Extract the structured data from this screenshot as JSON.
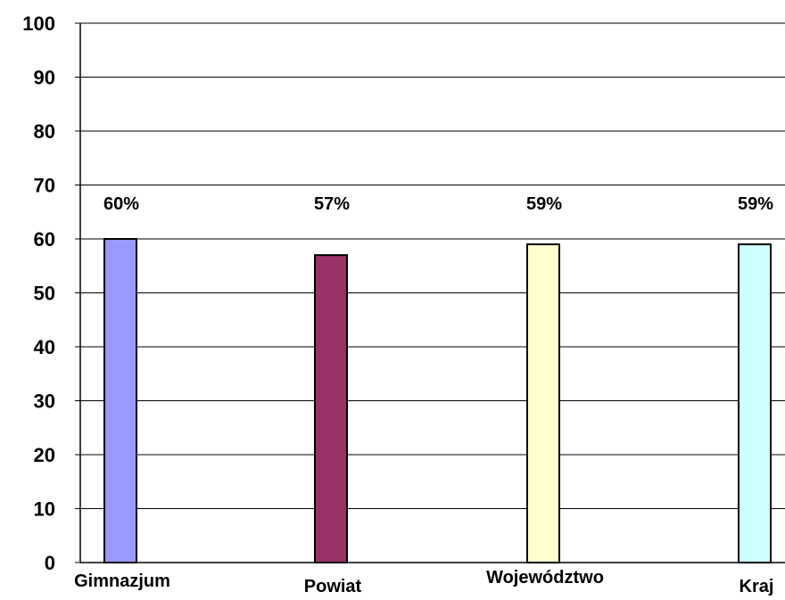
{
  "chart_data": {
    "type": "bar",
    "categories": [
      "Gimnazjum",
      "Powiat",
      "Województwo",
      "Kraj"
    ],
    "values": [
      60,
      57,
      59,
      59
    ],
    "data_labels": [
      "60%",
      "57%",
      "59%",
      "59%"
    ],
    "colors": [
      "#9999ff",
      "#993366",
      "#ffffcc",
      "#ccffff"
    ],
    "yticks": [
      "0",
      "10",
      "20",
      "30",
      "40",
      "50",
      "60",
      "70",
      "80",
      "90",
      "100"
    ],
    "ylim": [
      0,
      100
    ],
    "grid": true,
    "legend": "none"
  }
}
